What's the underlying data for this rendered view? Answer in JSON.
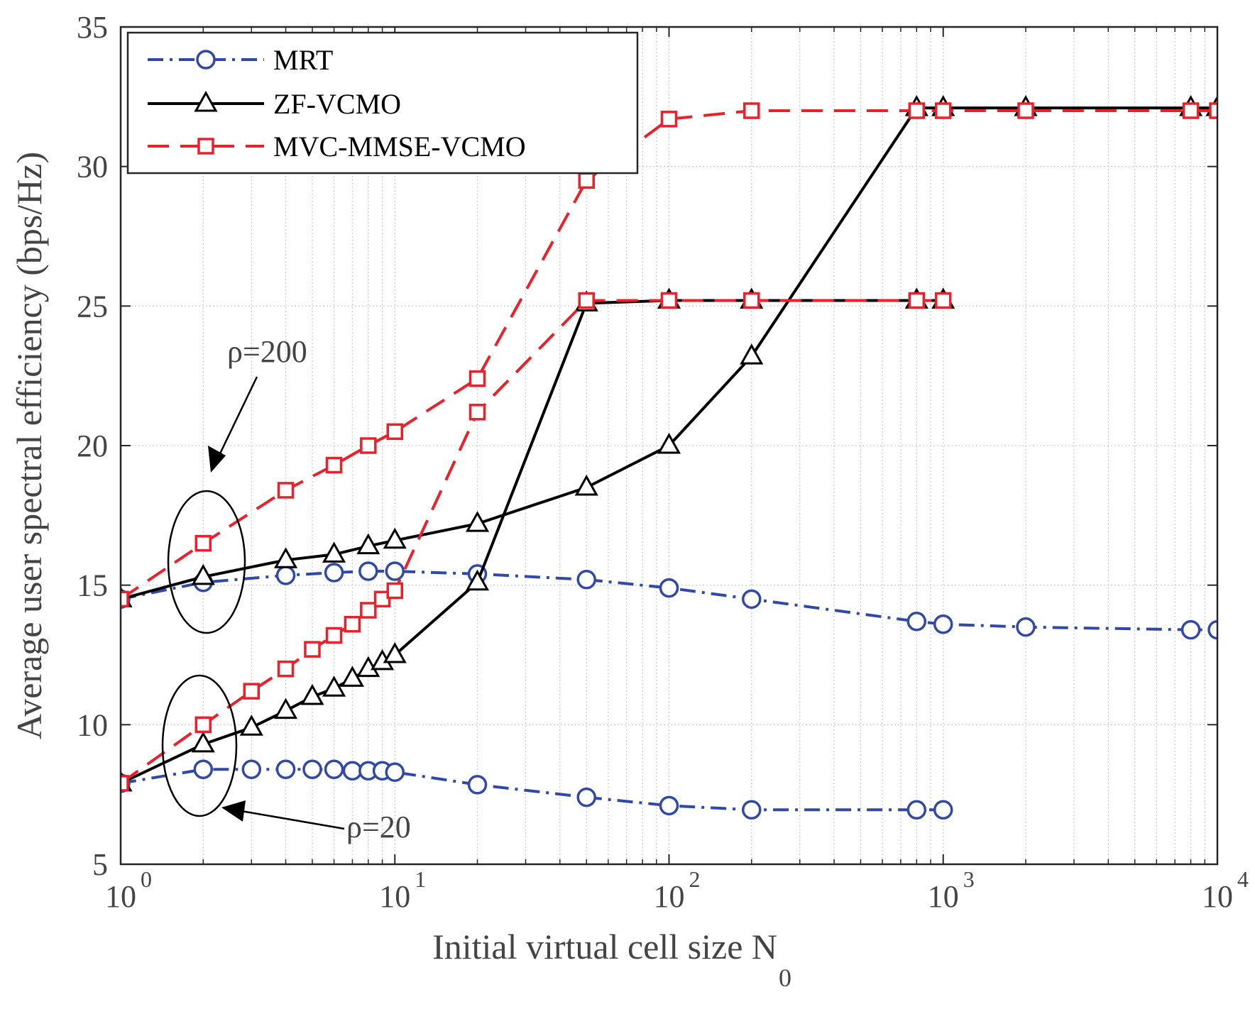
{
  "chart_data": {
    "type": "line",
    "title": "",
    "xlabel": "Initial virtual cell size N",
    "xlabel_subscript": "0",
    "ylabel": "Average user spectral efficiency (bps/Hz)",
    "xscale": "log",
    "xlim": [
      1,
      10000
    ],
    "ylim": [
      5,
      35
    ],
    "grid": true,
    "yticks": [
      "5",
      "10",
      "15",
      "20",
      "25",
      "30",
      "35"
    ],
    "xticks": [
      {
        "base": "10",
        "exp": "0"
      },
      {
        "base": "10",
        "exp": "1"
      },
      {
        "base": "10",
        "exp": "2"
      },
      {
        "base": "10",
        "exp": "3"
      },
      {
        "base": "10",
        "exp": "4"
      }
    ],
    "legend": {
      "position": "top-left",
      "entries": [
        {
          "label": "MRT",
          "color": "#3049a8",
          "dash": "dashdot",
          "marker": "circle"
        },
        {
          "label": "ZF-VCMO",
          "color": "#000000",
          "dash": "solid",
          "marker": "triangle"
        },
        {
          "label": "MVC-MMSE-VCMO",
          "color": "#e8212b",
          "dash": "dashed",
          "marker": "square"
        }
      ]
    },
    "series": [
      {
        "name": "MRT",
        "rho": "200",
        "color": "#3049a8",
        "dash": "dashdot",
        "marker": "circle",
        "x": [
          1,
          2,
          4,
          6,
          8,
          10,
          20,
          50,
          100,
          200,
          800,
          1000,
          2000,
          8000,
          10000
        ],
        "y": [
          14.5,
          15.1,
          15.35,
          15.45,
          15.5,
          15.5,
          15.4,
          15.2,
          14.9,
          14.5,
          13.7,
          13.6,
          13.5,
          13.4,
          13.4
        ]
      },
      {
        "name": "ZF-VCMO",
        "rho": "200",
        "color": "#000000",
        "dash": "solid",
        "marker": "triangle",
        "x": [
          1,
          2,
          4,
          6,
          8,
          10,
          20,
          50,
          100,
          200,
          800,
          1000,
          2000,
          8000,
          10000
        ],
        "y": [
          14.5,
          15.3,
          15.9,
          16.1,
          16.4,
          16.6,
          17.2,
          18.5,
          20.0,
          23.2,
          32.1,
          32.1,
          32.1,
          32.1,
          32.1
        ]
      },
      {
        "name": "MVC-MMSE-VCMO",
        "rho": "200",
        "color": "#e8212b",
        "dash": "dashed",
        "marker": "square",
        "x": [
          1,
          2,
          4,
          6,
          8,
          10,
          20,
          50,
          100,
          200,
          800,
          1000,
          2000,
          8000,
          10000
        ],
        "y": [
          14.5,
          16.5,
          18.4,
          19.3,
          20.0,
          20.5,
          22.4,
          29.5,
          31.7,
          32.0,
          32.0,
          32.0,
          32.0,
          32.0,
          32.0
        ]
      },
      {
        "name": "MRT",
        "rho": "20",
        "color": "#3049a8",
        "dash": "dashdot",
        "marker": "circle",
        "x": [
          1,
          2,
          3,
          4,
          5,
          6,
          7,
          8,
          9,
          10,
          20,
          50,
          100,
          200,
          800,
          1000
        ],
        "y": [
          7.9,
          8.4,
          8.4,
          8.4,
          8.4,
          8.4,
          8.35,
          8.35,
          8.35,
          8.3,
          7.85,
          7.4,
          7.1,
          6.95,
          6.95,
          6.95
        ]
      },
      {
        "name": "ZF-VCMO",
        "rho": "20",
        "color": "#000000",
        "dash": "solid",
        "marker": "triangle",
        "x": [
          1,
          2,
          3,
          4,
          5,
          6,
          7,
          8,
          9,
          10,
          20,
          50,
          100,
          200,
          800,
          1000
        ],
        "y": [
          7.9,
          9.3,
          9.9,
          10.5,
          11.0,
          11.3,
          11.65,
          12.0,
          12.25,
          12.5,
          15.1,
          25.1,
          25.2,
          25.2,
          25.2,
          25.2
        ]
      },
      {
        "name": "MVC-MMSE-VCMO",
        "rho": "20",
        "color": "#e8212b",
        "dash": "dashed",
        "marker": "square",
        "x": [
          1,
          2,
          3,
          4,
          5,
          6,
          7,
          8,
          9,
          10,
          20,
          50,
          100,
          200,
          800,
          1000
        ],
        "y": [
          7.9,
          10.0,
          11.2,
          12.0,
          12.7,
          13.2,
          13.6,
          14.1,
          14.5,
          14.8,
          21.2,
          25.2,
          25.2,
          25.2,
          25.2,
          25.2
        ]
      }
    ],
    "annotations": [
      {
        "name": "rho-200",
        "text": "ρ=200"
      },
      {
        "name": "rho-20",
        "text": "ρ=20"
      }
    ]
  }
}
